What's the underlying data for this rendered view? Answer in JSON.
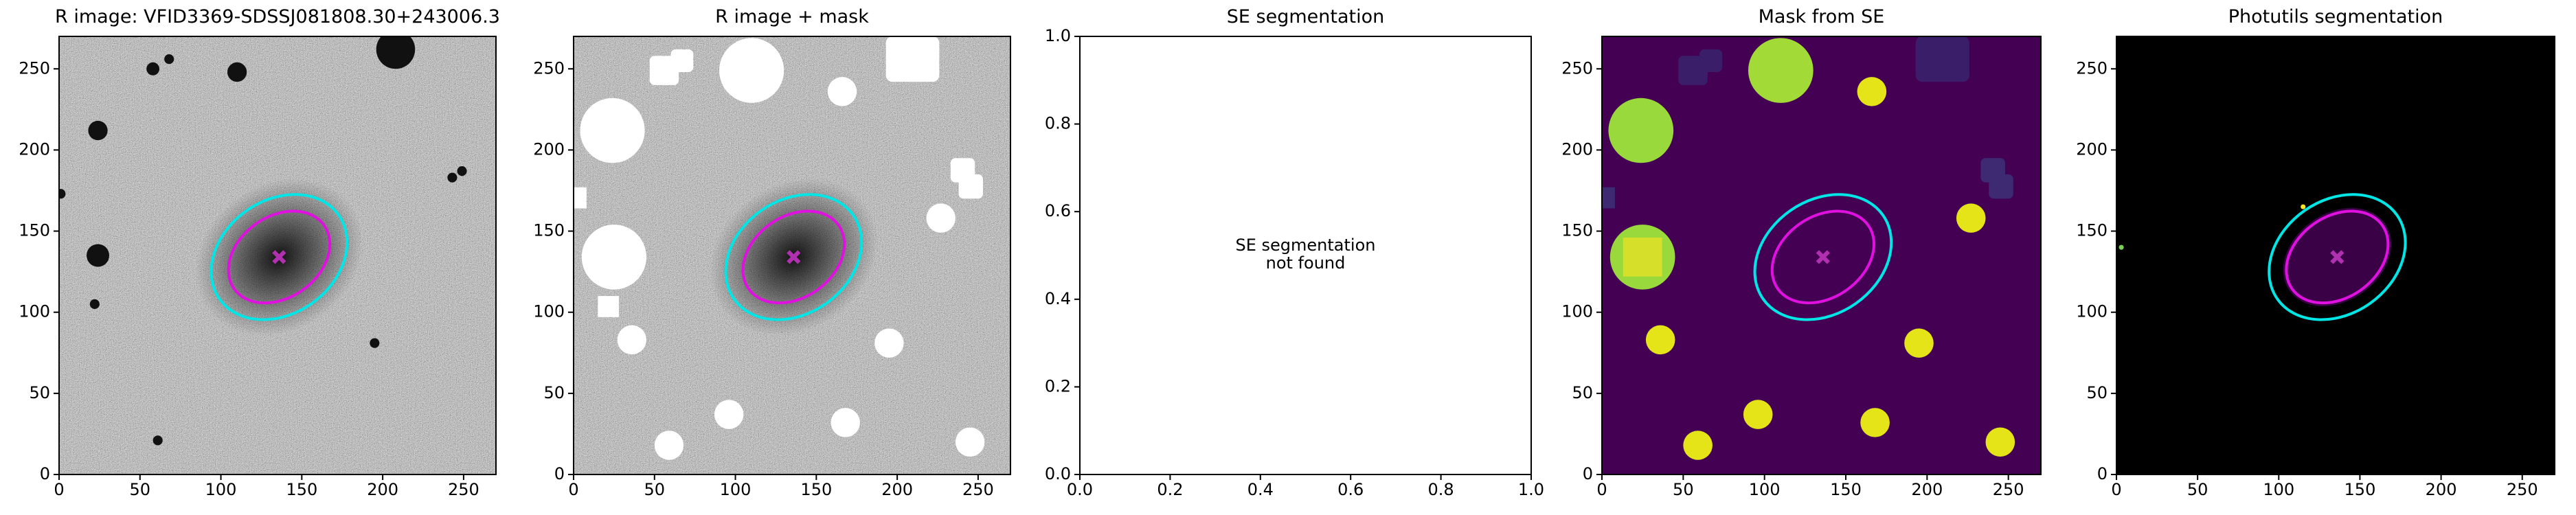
{
  "chart_data": [
    {
      "type": "image",
      "title": "R image: VFID3369-SDSSJ081808.30+243006.3",
      "cmap": "gray",
      "xlim": [
        0,
        270
      ],
      "ylim": [
        0,
        270
      ],
      "xticks": [
        0,
        50,
        100,
        150,
        200,
        250
      ],
      "yticks": [
        0,
        50,
        100,
        150,
        200,
        250
      ],
      "ellipses": [
        {
          "center": [
            136,
            134
          ],
          "width": 90,
          "height": 70,
          "angle": 35,
          "color": "#00e5e5"
        },
        {
          "center": [
            136,
            134
          ],
          "width": 68,
          "height": 50,
          "angle": 35,
          "color": "#e010e0"
        }
      ],
      "marker": {
        "x": 136,
        "y": 134,
        "color": "#b030b0"
      }
    },
    {
      "type": "image",
      "title": "R image + mask",
      "cmap": "gray",
      "xlim": [
        0,
        270
      ],
      "ylim": [
        0,
        270
      ],
      "xticks": [
        0,
        50,
        100,
        150,
        200,
        250
      ],
      "yticks": [
        0,
        50,
        100,
        150,
        200,
        250
      ],
      "ellipses": [
        {
          "center": [
            136,
            134
          ],
          "width": 90,
          "height": 70,
          "angle": 35,
          "color": "#00e5e5"
        },
        {
          "center": [
            136,
            134
          ],
          "width": 68,
          "height": 50,
          "angle": 35,
          "color": "#e010e0"
        }
      ],
      "marker": {
        "x": 136,
        "y": 134,
        "color": "#b030b0"
      }
    },
    {
      "type": "empty",
      "title": "SE segmentation",
      "annotation": [
        "SE segmentation",
        "not found"
      ],
      "xlim": [
        0,
        1
      ],
      "ylim": [
        0,
        1
      ],
      "xticks": [
        {
          "value": 0,
          "label": "0.0"
        },
        {
          "value": 0.2,
          "label": "0.2"
        },
        {
          "value": 0.4,
          "label": "0.4"
        },
        {
          "value": 0.6,
          "label": "0.6"
        },
        {
          "value": 0.8,
          "label": "0.8"
        },
        {
          "value": 1,
          "label": "1.0"
        }
      ],
      "yticks": [
        {
          "value": 0,
          "label": "0.0"
        },
        {
          "value": 0.2,
          "label": "0.2"
        },
        {
          "value": 0.4,
          "label": "0.4"
        },
        {
          "value": 0.6,
          "label": "0.6"
        },
        {
          "value": 0.8,
          "label": "0.8"
        },
        {
          "value": 1,
          "label": "1.0"
        }
      ]
    },
    {
      "type": "image",
      "title": "Mask from SE",
      "cmap": "viridis",
      "xlim": [
        0,
        270
      ],
      "ylim": [
        0,
        270
      ],
      "xticks": [
        0,
        50,
        100,
        150,
        200,
        250
      ],
      "yticks": [
        0,
        50,
        100,
        150,
        200,
        250
      ],
      "ellipses": [
        {
          "center": [
            136,
            134
          ],
          "width": 90,
          "height": 70,
          "angle": 35,
          "color": "#00e5e5"
        },
        {
          "center": [
            136,
            134
          ],
          "width": 68,
          "height": 50,
          "angle": 35,
          "color": "#e010e0"
        }
      ],
      "marker": {
        "x": 136,
        "y": 134,
        "color": "#b030b0"
      }
    },
    {
      "type": "image",
      "title": "Photutils segmentation",
      "cmap": "black",
      "xlim": [
        0,
        270
      ],
      "ylim": [
        0,
        270
      ],
      "xticks": [
        0,
        50,
        100,
        150,
        200,
        250
      ],
      "yticks": [
        0,
        50,
        100,
        150,
        200,
        250
      ],
      "ellipses": [
        {
          "center": [
            136,
            134
          ],
          "width": 90,
          "height": 70,
          "angle": 35,
          "color": "#00e5e5"
        },
        {
          "center": [
            136,
            134
          ],
          "width": 68,
          "height": 50,
          "angle": 35,
          "color": "#e010e0"
        }
      ],
      "marker": {
        "x": 136,
        "y": 134,
        "color": "#b030b0"
      }
    }
  ]
}
